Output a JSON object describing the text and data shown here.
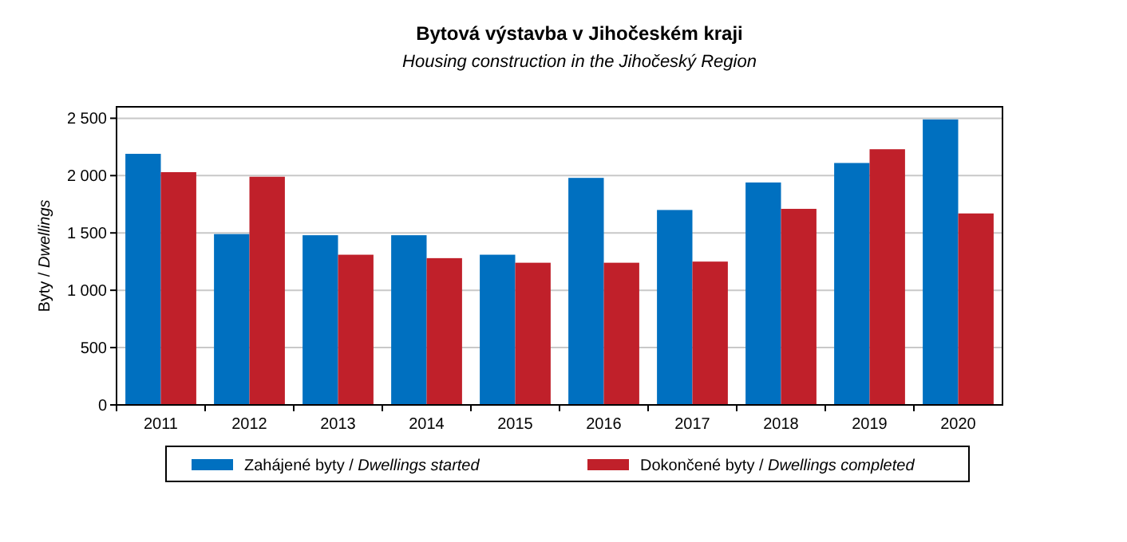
{
  "chart_data": {
    "type": "bar",
    "title": "Bytová výstavba v Jihočeském kraji",
    "subtitle": "Housing construction in the Jihočeský Region",
    "ylabel": "Byty / Dwellings",
    "categories": [
      "2011",
      "2012",
      "2013",
      "2014",
      "2015",
      "2016",
      "2017",
      "2018",
      "2019",
      "2020"
    ],
    "series": [
      {
        "name": "Zahájené byty / Dwellings started",
        "color": "#0070c0",
        "values": [
          2190,
          1490,
          1480,
          1480,
          1310,
          1980,
          1700,
          1940,
          2110,
          2490
        ]
      },
      {
        "name": "Dokončené byty / Dwellings completed",
        "color": "#c0202a",
        "values": [
          2030,
          1990,
          1310,
          1280,
          1240,
          1240,
          1250,
          1710,
          2230,
          1670
        ]
      }
    ],
    "ylim": [
      0,
      2600
    ],
    "yticks": [
      0,
      {
        "value": 500,
        "label": "500"
      },
      {
        "value": 1000,
        "label": "1 000"
      },
      {
        "value": 1500,
        "label": "1 500"
      },
      {
        "value": 2000,
        "label": "2 000"
      },
      {
        "value": 2500,
        "label": "2 500"
      }
    ],
    "grid": "y",
    "legend": "bottom"
  }
}
